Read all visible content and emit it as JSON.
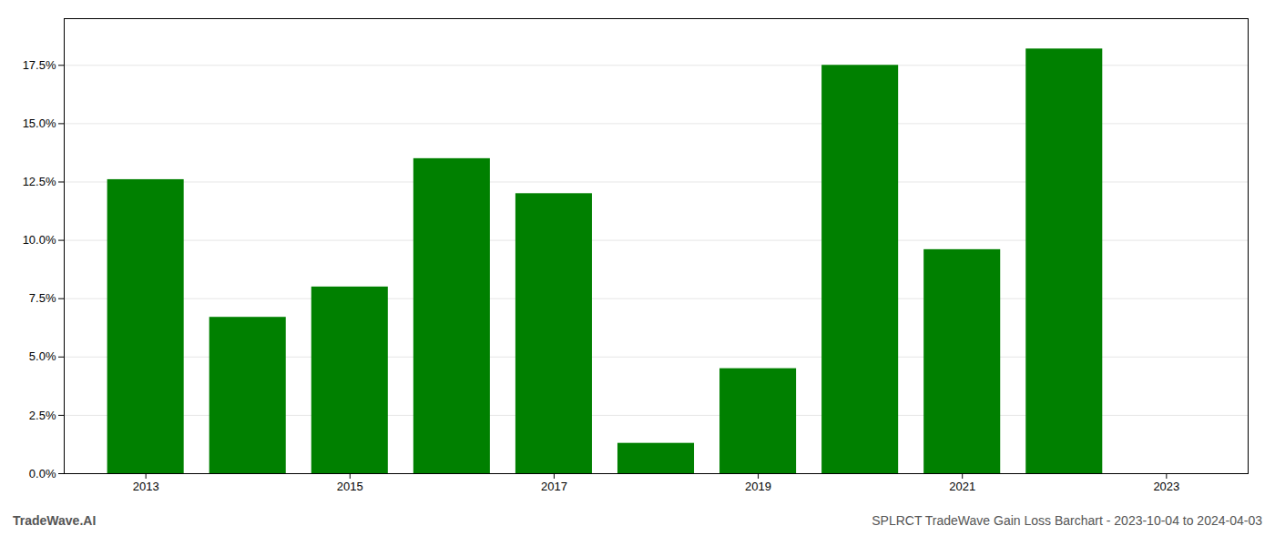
{
  "chart_data": {
    "type": "bar",
    "x": [
      2013,
      2014,
      2015,
      2016,
      2017,
      2018,
      2019,
      2020,
      2021,
      2022
    ],
    "values": [
      0.126,
      0.067,
      0.08,
      0.135,
      0.12,
      0.013,
      0.045,
      0.175,
      0.096,
      0.182
    ],
    "color": "#008000",
    "xlim": [
      2012.2,
      2023.8
    ],
    "xticks": [
      2013,
      2015,
      2017,
      2019,
      2021,
      2023
    ],
    "ylim": [
      0.0,
      0.195
    ],
    "yticks": [
      {
        "value": 0.0,
        "label": "0.0%"
      },
      {
        "value": 0.025,
        "label": "2.5%"
      },
      {
        "value": 0.05,
        "label": "5.0%"
      },
      {
        "value": 0.075,
        "label": "7.5%"
      },
      {
        "value": 0.1,
        "label": "10.0%"
      },
      {
        "value": 0.125,
        "label": "12.5%"
      },
      {
        "value": 0.15,
        "label": "15.0%"
      },
      {
        "value": 0.175,
        "label": "17.5%"
      }
    ],
    "grid": true,
    "annotations": [
      "TradeWave.AI",
      "SPLRCT TradeWave Gain Loss Barchart - 2023-10-04 to 2024-04-03"
    ]
  }
}
